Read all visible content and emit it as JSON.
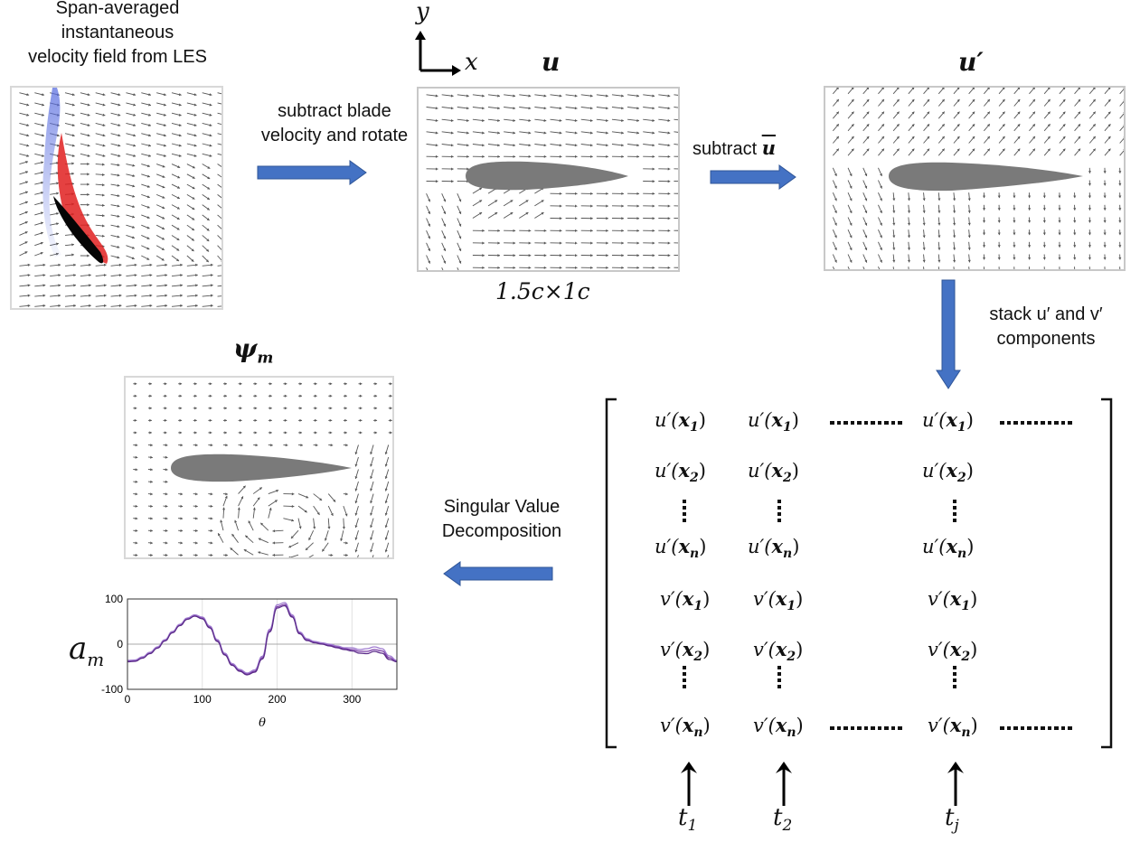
{
  "source_caption": [
    "Span-averaged",
    "instantaneous",
    "velocity field from LES"
  ],
  "step1_label": [
    "subtract blade",
    "velocity and rotate"
  ],
  "axes": {
    "y": "y",
    "x": "x"
  },
  "u_title": "u",
  "u_dims": "1.5c×1c",
  "step2_label_prefix": "subtract ",
  "step2_symbol": "u",
  "uprime_title": "u′",
  "step3_label": [
    "stack u′ and v′",
    "components"
  ],
  "psi_title": "ψ",
  "psi_sub": "m",
  "step4_label": [
    "Singular Value",
    "Decomposition"
  ],
  "coef_label": "a",
  "coef_sub": "m",
  "matrix": {
    "columns": [
      {
        "time": "t",
        "time_sub": "1"
      },
      {
        "time": "t",
        "time_sub": "2"
      },
      {
        "time": "t",
        "time_sub": "j"
      }
    ],
    "u_rows": [
      {
        "fn": "u′(",
        "var": "x",
        "sub": "1",
        "close": ")"
      },
      {
        "fn": "u′(",
        "var": "x",
        "sub": "2",
        "close": ")"
      },
      {
        "fn": "u′(",
        "var": "x",
        "sub": "n",
        "close": ")"
      }
    ],
    "v_rows": [
      {
        "fn": "v′(",
        "var": "x",
        "sub": "1",
        "close": ")"
      },
      {
        "fn": "v′(",
        "var": "x",
        "sub": "2",
        "close": ")"
      },
      {
        "fn": "v′(",
        "var": "x",
        "sub": "n",
        "close": ")"
      }
    ]
  },
  "chart_data": {
    "type": "line",
    "title": "",
    "xlabel": "θ",
    "ylabel": "",
    "xlim": [
      0,
      360
    ],
    "ylim": [
      -100,
      100
    ],
    "xticks": [
      "0",
      "100",
      "200",
      "300"
    ],
    "yticks": [
      "100",
      "0",
      "-100"
    ],
    "grid": true,
    "x": [
      0,
      10,
      20,
      30,
      40,
      50,
      60,
      70,
      80,
      90,
      100,
      110,
      120,
      130,
      140,
      150,
      160,
      170,
      180,
      190,
      200,
      210,
      220,
      230,
      240,
      250,
      260,
      270,
      280,
      290,
      300,
      310,
      320,
      330,
      340,
      350,
      360
    ],
    "series": [
      {
        "color": "#7b3fa8",
        "values": [
          -38,
          -37,
          -30,
          -20,
          -8,
          8,
          26,
          42,
          56,
          63,
          58,
          38,
          8,
          -22,
          -45,
          -58,
          -66,
          -60,
          -30,
          30,
          83,
          88,
          62,
          25,
          10,
          5,
          2,
          -2,
          -6,
          -10,
          -12,
          -16,
          -16,
          -12,
          -15,
          -30,
          -38
        ]
      },
      {
        "color": "#a07bd0",
        "values": [
          -36,
          -35,
          -28,
          -18,
          -6,
          10,
          28,
          44,
          58,
          65,
          60,
          40,
          10,
          -20,
          -43,
          -56,
          -64,
          -57,
          -27,
          33,
          87,
          92,
          65,
          27,
          12,
          6,
          3,
          0,
          -4,
          -8,
          -8,
          -12,
          -10,
          -6,
          -10,
          -26,
          -36
        ]
      },
      {
        "color": "#5a2a88",
        "values": [
          -39,
          -38,
          -31,
          -21,
          -9,
          7,
          25,
          41,
          55,
          62,
          56,
          36,
          6,
          -24,
          -47,
          -60,
          -68,
          -62,
          -33,
          27,
          80,
          85,
          60,
          23,
          8,
          3,
          0,
          -4,
          -8,
          -12,
          -15,
          -20,
          -21,
          -16,
          -20,
          -34,
          -39
        ]
      }
    ]
  },
  "colors": {
    "arrow": "#4472c4",
    "airfoil": "#7a7a7a",
    "vector": "#555555",
    "panel_border": "#c8c8c8"
  }
}
